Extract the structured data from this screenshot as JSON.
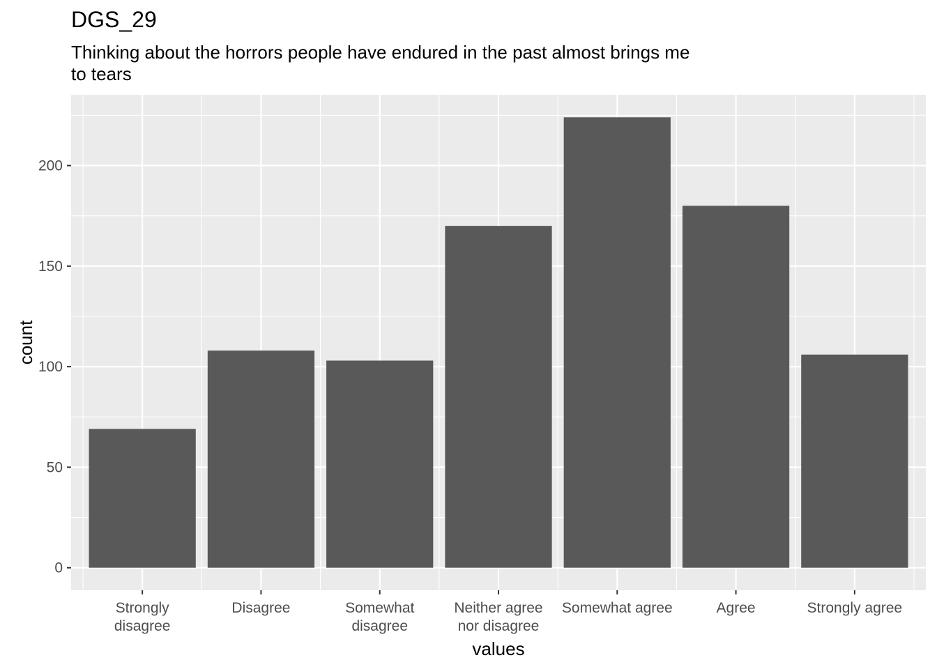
{
  "chart_data": {
    "type": "bar",
    "title": "DGS_29",
    "subtitle": "Thinking about the horrors people have endured in the past almost brings me to tears",
    "xlabel": "values",
    "ylabel": "count",
    "categories": [
      "Strongly disagree",
      "Disagree",
      "Somewhat disagree",
      "Neither agree nor disagree",
      "Somewhat agree",
      "Agree",
      "Strongly agree"
    ],
    "category_label_lines": [
      [
        "Strongly",
        "disagree"
      ],
      [
        "Disagree"
      ],
      [
        "Somewhat",
        "disagree"
      ],
      [
        "Neither agree",
        "nor disagree"
      ],
      [
        "Somewhat agree"
      ],
      [
        "Agree"
      ],
      [
        "Strongly agree"
      ]
    ],
    "values": [
      69,
      108,
      103,
      170,
      224,
      180,
      106
    ],
    "ylim": [
      -11.2,
      235.2
    ],
    "yticks": [
      0,
      50,
      100,
      150,
      200
    ],
    "bar_color": "#595959",
    "panel_color": "#ebebeb",
    "grid_color": "#ffffff",
    "grid": true
  }
}
